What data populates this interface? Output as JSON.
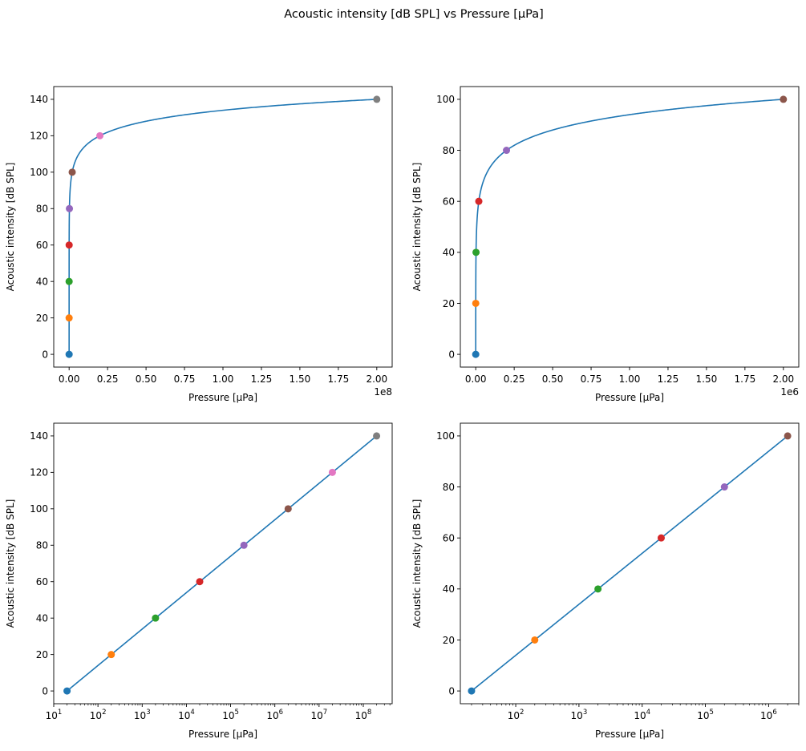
{
  "figure": {
    "suptitle": "Acoustic intensity [dB SPL] vs Pressure [μPa]"
  },
  "colors": {
    "line": "#1f77b4",
    "points": [
      "#1f77b4",
      "#ff7f0e",
      "#2ca02c",
      "#d62728",
      "#9467bd",
      "#8c564b",
      "#e377c2",
      "#7f7f7f"
    ]
  },
  "chart_data": [
    {
      "type": "line",
      "xscale": "linear",
      "xlabel": "Pressure [μPa]",
      "ylabel": "Acoustic intensity [dB SPL]",
      "offset_text": "1e8",
      "xlim": [
        -0.1,
        2.1
      ],
      "ylim": [
        -7,
        147
      ],
      "xticks": [
        0,
        0.25,
        0.5,
        0.75,
        1.0,
        1.25,
        1.5,
        1.75,
        2.0
      ],
      "xtick_labels": [
        "0.00",
        "0.25",
        "0.50",
        "0.75",
        "1.00",
        "1.25",
        "1.50",
        "1.75",
        "2.00"
      ],
      "yticks": [
        0,
        20,
        40,
        60,
        80,
        100,
        120,
        140
      ],
      "ytick_labels": [
        "0",
        "20",
        "40",
        "60",
        "80",
        "100",
        "120",
        "140"
      ],
      "curve": {
        "p0": 20,
        "p_max": 200000000,
        "unit": 100000000
      },
      "points": {
        "x": [
          20,
          200,
          2000,
          20000,
          200000,
          2000000,
          20000000,
          200000000
        ],
        "y": [
          0,
          20,
          40,
          60,
          80,
          100,
          120,
          140
        ]
      }
    },
    {
      "type": "line",
      "xscale": "linear",
      "xlabel": "Pressure [μPa]",
      "ylabel": "Acoustic intensity [dB SPL]",
      "offset_text": "1e6",
      "xlim": [
        -0.1,
        2.1
      ],
      "ylim": [
        -5,
        105
      ],
      "xticks": [
        0,
        0.25,
        0.5,
        0.75,
        1.0,
        1.25,
        1.5,
        1.75,
        2.0
      ],
      "xtick_labels": [
        "0.00",
        "0.25",
        "0.50",
        "0.75",
        "1.00",
        "1.25",
        "1.50",
        "1.75",
        "2.00"
      ],
      "yticks": [
        0,
        20,
        40,
        60,
        80,
        100
      ],
      "ytick_labels": [
        "0",
        "20",
        "40",
        "60",
        "80",
        "100"
      ],
      "curve": {
        "p0": 20,
        "p_max": 2000000,
        "unit": 1000000
      },
      "points": {
        "x": [
          20,
          200,
          2000,
          20000,
          200000,
          2000000
        ],
        "y": [
          0,
          20,
          40,
          60,
          80,
          100
        ]
      }
    },
    {
      "type": "line",
      "xscale": "log",
      "xlabel": "Pressure [μPa]",
      "ylabel": "Acoustic intensity [dB SPL]",
      "xlim": [
        10,
        450000000
      ],
      "ylim": [
        -7,
        147
      ],
      "xticks": [
        10,
        100,
        1000,
        10000,
        100000,
        1000000,
        10000000,
        100000000
      ],
      "xtick_labels": [
        [
          "10",
          "1"
        ],
        [
          "10",
          "2"
        ],
        [
          "10",
          "3"
        ],
        [
          "10",
          "4"
        ],
        [
          "10",
          "5"
        ],
        [
          "10",
          "6"
        ],
        [
          "10",
          "7"
        ],
        [
          "10",
          "8"
        ]
      ],
      "yticks": [
        0,
        20,
        40,
        60,
        80,
        100,
        120,
        140
      ],
      "ytick_labels": [
        "0",
        "20",
        "40",
        "60",
        "80",
        "100",
        "120",
        "140"
      ],
      "curve": {
        "p0": 20,
        "p_max": 200000000,
        "unit": 1
      },
      "points": {
        "x": [
          20,
          200,
          2000,
          20000,
          200000,
          2000000,
          20000000,
          200000000
        ],
        "y": [
          0,
          20,
          40,
          60,
          80,
          100,
          120,
          140
        ]
      }
    },
    {
      "type": "line",
      "xscale": "log",
      "xlabel": "Pressure [μPa]",
      "ylabel": "Acoustic intensity [dB SPL]",
      "xlim": [
        13.3,
        3000000
      ],
      "ylim": [
        -5,
        105
      ],
      "xticks": [
        100,
        1000,
        10000,
        100000,
        1000000
      ],
      "xtick_labels": [
        [
          "10",
          "2"
        ],
        [
          "10",
          "3"
        ],
        [
          "10",
          "4"
        ],
        [
          "10",
          "5"
        ],
        [
          "10",
          "6"
        ]
      ],
      "yticks": [
        0,
        20,
        40,
        60,
        80,
        100
      ],
      "ytick_labels": [
        "0",
        "20",
        "40",
        "60",
        "80",
        "100"
      ],
      "curve": {
        "p0": 20,
        "p_max": 2000000,
        "unit": 1
      },
      "points": {
        "x": [
          20,
          200,
          2000,
          20000,
          200000,
          2000000
        ],
        "y": [
          0,
          20,
          40,
          60,
          80,
          100
        ]
      }
    }
  ]
}
